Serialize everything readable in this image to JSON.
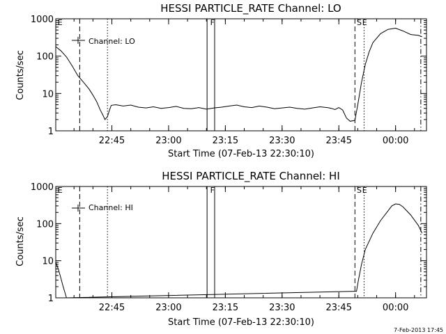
{
  "timestamp": "7-Feb-2013 17:45",
  "chart_data": [
    {
      "type": "line",
      "title": "HESSI PARTICLE_RATE Channel: LO",
      "xlabel": "Start Time (07-Feb-13 22:30:10)",
      "ylabel": "Counts/sec",
      "yscale": "log",
      "ylim": [
        1,
        1000
      ],
      "xlim_minutes_after_start": [
        0,
        98
      ],
      "x_tick_labels": [
        "22:45",
        "23:00",
        "23:15",
        "23:30",
        "23:45",
        "00:00"
      ],
      "y_tick_labels": [
        "1",
        "10",
        "100",
        "1000"
      ],
      "legend": {
        "entries": [
          "Channel: LO"
        ],
        "position": "top-left"
      },
      "markers": [
        {
          "label": "E",
          "x": "22:30:40"
        },
        {
          "label": "F",
          "x": "23:11:00"
        },
        {
          "label": "S",
          "x": "23:49:45"
        },
        {
          "label": "E",
          "x": "23:51:10"
        }
      ],
      "vertical_lines": [
        {
          "x": "22:36:30",
          "style": "dashed"
        },
        {
          "x": "22:43:50",
          "style": "dotted"
        },
        {
          "x": "23:10:10",
          "style": "solid"
        },
        {
          "x": "23:12:10",
          "style": "solid"
        },
        {
          "x": "23:49:15",
          "style": "dashed"
        },
        {
          "x": "23:51:40",
          "style": "dotted"
        },
        {
          "x": "00:06:40",
          "style": "dashdot"
        }
      ],
      "series": [
        {
          "x": [
            "22:30:10",
            "22:31:30",
            "22:33:00",
            "22:34:30",
            "22:36:00",
            "22:37:30",
            "22:39:00",
            "22:40:00",
            "22:41:00",
            "22:42:00",
            "22:42:30",
            "22:43:10",
            "22:43:50",
            "22:44:20",
            "22:44:50",
            "22:46:00",
            "22:48:00",
            "22:50:00",
            "22:52:00",
            "22:54:00",
            "22:56:00",
            "22:58:00",
            "23:00:00",
            "23:02:00",
            "23:04:00",
            "23:06:00",
            "23:08:00",
            "23:10:00",
            "23:12:00",
            "23:14:00",
            "23:16:00",
            "23:18:00",
            "23:20:00",
            "23:22:00",
            "23:24:00",
            "23:26:00",
            "23:28:00",
            "23:30:00",
            "23:32:00",
            "23:34:00",
            "23:36:00",
            "23:38:00",
            "23:40:00",
            "23:42:00",
            "23:43:00",
            "23:44:00",
            "23:45:00",
            "23:46:00",
            "23:47:00",
            "23:48:00",
            "23:49:15",
            "23:50:00",
            "23:51:00",
            "23:52:00",
            "23:53:00",
            "23:54:00",
            "23:56:00",
            "23:58:00",
            "00:00:00",
            "00:02:00",
            "00:04:00",
            "00:06:00",
            "00:07:00"
          ],
          "values": [
            180,
            140,
            95,
            55,
            30,
            20,
            13,
            9,
            6,
            3.5,
            2.8,
            2.0,
            2.4,
            3.5,
            4.8,
            5.0,
            4.6,
            4.9,
            4.3,
            4.1,
            4.4,
            4.0,
            4.2,
            4.5,
            4.0,
            3.9,
            4.2,
            3.8,
            4.1,
            4.3,
            4.6,
            4.9,
            4.4,
            4.2,
            4.6,
            4.3,
            3.9,
            4.1,
            4.3,
            4.0,
            3.8,
            4.1,
            4.4,
            4.2,
            4.0,
            3.7,
            4.2,
            3.6,
            2.2,
            1.8,
            1.9,
            5,
            20,
            60,
            130,
            230,
            400,
            520,
            560,
            470,
            380,
            360,
            330
          ]
        }
      ]
    },
    {
      "type": "line",
      "title": "HESSI PARTICLE_RATE Channel: HI",
      "xlabel": "Start Time (07-Feb-13 22:30:10)",
      "ylabel": "Counts/sec",
      "yscale": "log",
      "ylim": [
        1,
        1000
      ],
      "xlim_minutes_after_start": [
        0,
        98
      ],
      "x_tick_labels": [
        "22:45",
        "23:00",
        "23:15",
        "23:30",
        "23:45",
        "00:00"
      ],
      "y_tick_labels": [
        "1",
        "10",
        "100",
        "1000"
      ],
      "legend": {
        "entries": [
          "Channel: HI"
        ],
        "position": "top-left"
      },
      "markers": [
        {
          "label": "E",
          "x": "22:30:40"
        },
        {
          "label": "F",
          "x": "23:11:00"
        },
        {
          "label": "S",
          "x": "23:49:45"
        },
        {
          "label": "E",
          "x": "23:51:10"
        }
      ],
      "vertical_lines": [
        {
          "x": "22:36:30",
          "style": "dashed"
        },
        {
          "x": "22:43:50",
          "style": "dotted"
        },
        {
          "x": "23:10:10",
          "style": "solid"
        },
        {
          "x": "23:12:10",
          "style": "solid"
        },
        {
          "x": "23:49:15",
          "style": "dashed"
        },
        {
          "x": "23:51:40",
          "style": "dotted"
        },
        {
          "x": "00:06:40",
          "style": "dashdot"
        }
      ],
      "series": [
        {
          "x": [
            "22:30:10",
            "22:30:50",
            "22:31:30",
            "22:32:00",
            "22:32:40",
            "22:33:00",
            "23:49:40",
            "23:50:10",
            "23:51:00",
            "23:52:00",
            "23:54:00",
            "23:56:00",
            "23:58:00",
            "23:59:00",
            "00:00:00",
            "00:01:00",
            "00:02:00",
            "00:04:00",
            "00:06:00",
            "00:07:00"
          ],
          "values": [
            9,
            6,
            3.5,
            2.2,
            1.3,
            1.0,
            1.5,
            3,
            8,
            20,
            55,
            120,
            220,
            300,
            340,
            330,
            280,
            170,
            90,
            55
          ]
        }
      ]
    }
  ]
}
